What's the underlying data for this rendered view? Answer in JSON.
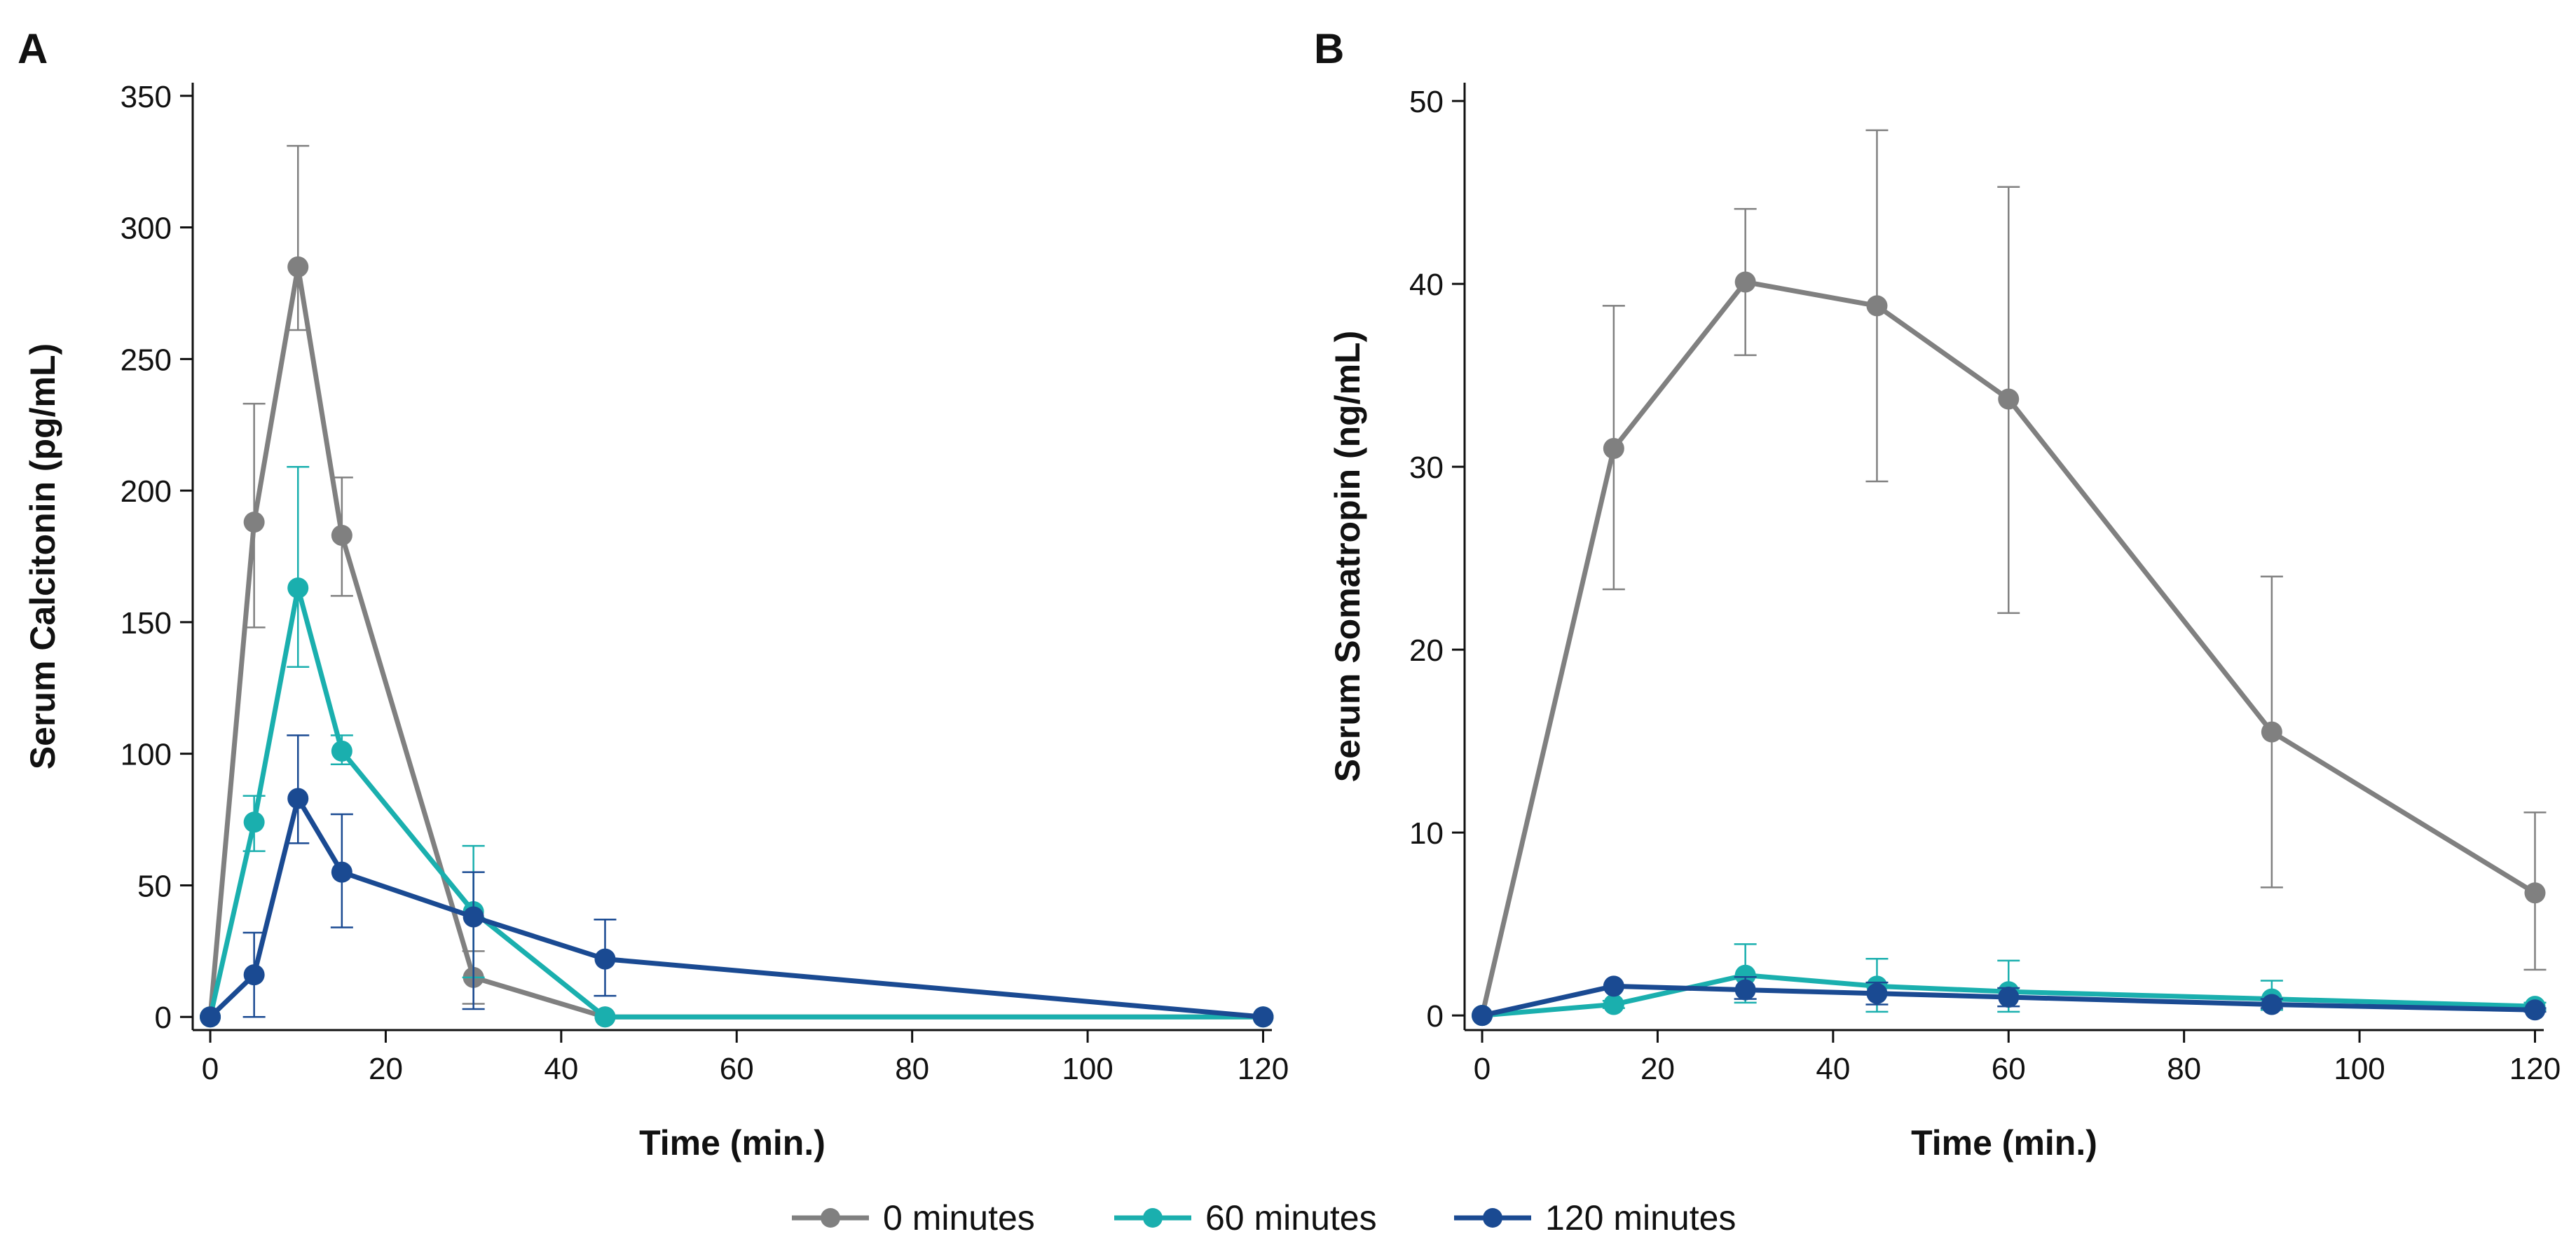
{
  "chart_data": [
    {
      "type": "line",
      "panel_label": "A",
      "xlabel": "Time (min.)",
      "ylabel": "Serum Calcitonin (pg/mL)",
      "xlim": [
        -2,
        121
      ],
      "ylim": [
        -5,
        355
      ],
      "xticks": [
        0,
        20,
        40,
        60,
        80,
        100,
        120
      ],
      "yticks": [
        0,
        50,
        100,
        150,
        200,
        250,
        300,
        350
      ],
      "grid": false,
      "series": [
        {
          "name": "0 minutes",
          "color": "#808080",
          "x": [
            0,
            5,
            10,
            15,
            30,
            45,
            120
          ],
          "y": [
            0,
            188,
            285,
            183,
            15,
            0,
            0
          ],
          "err_low": [
            0,
            148,
            261,
            160,
            5,
            0,
            0
          ],
          "err_high": [
            0,
            233,
            331,
            205,
            25,
            0,
            0
          ]
        },
        {
          "name": "60 minutes",
          "color": "#1AAFAE",
          "x": [
            0,
            5,
            10,
            15,
            30,
            45,
            120
          ],
          "y": [
            0,
            74,
            163,
            101,
            40,
            0,
            0
          ],
          "err_low": [
            0,
            63,
            133,
            96,
            15,
            0,
            0
          ],
          "err_high": [
            0,
            84,
            209,
            107,
            65,
            0,
            0
          ]
        },
        {
          "name": "120 minutes",
          "color": "#1A4A92",
          "x": [
            0,
            5,
            10,
            15,
            30,
            45,
            120
          ],
          "y": [
            0,
            16,
            83,
            55,
            38,
            22,
            0
          ],
          "err_low": [
            0,
            0,
            66,
            34,
            3,
            8,
            0
          ],
          "err_high": [
            0,
            32,
            107,
            77,
            55,
            37,
            0
          ]
        }
      ]
    },
    {
      "type": "line",
      "panel_label": "B",
      "xlabel": "Time (min.)",
      "ylabel": "Serum Somatropin (ng/mL)",
      "xlim": [
        -2,
        121
      ],
      "ylim": [
        -0.8,
        51
      ],
      "xticks": [
        0,
        20,
        40,
        60,
        80,
        100,
        120
      ],
      "yticks": [
        0,
        10,
        20,
        30,
        40,
        50
      ],
      "grid": false,
      "series": [
        {
          "name": "0 minutes",
          "color": "#808080",
          "x": [
            0,
            15,
            30,
            45,
            60,
            90,
            120
          ],
          "y": [
            0,
            31,
            40.1,
            38.8,
            33.7,
            15.5,
            6.7
          ],
          "err_low": [
            0,
            23.3,
            36.1,
            29.2,
            22.0,
            7.0,
            2.5
          ],
          "err_high": [
            0,
            38.8,
            44.1,
            48.4,
            45.3,
            24.0,
            11.1
          ]
        },
        {
          "name": "60 minutes",
          "color": "#1AAFAE",
          "x": [
            0,
            15,
            30,
            45,
            60,
            90,
            120
          ],
          "y": [
            0,
            0.6,
            2.2,
            1.6,
            1.3,
            0.9,
            0.5
          ],
          "err_low": [
            0,
            0.4,
            0.7,
            0.2,
            0.2,
            0.3,
            0.3
          ],
          "err_high": [
            0,
            0.8,
            3.9,
            3.1,
            3.0,
            1.9,
            0.7
          ]
        },
        {
          "name": "120 minutes",
          "color": "#1A4A92",
          "x": [
            0,
            15,
            30,
            45,
            60,
            90,
            120
          ],
          "y": [
            0,
            1.6,
            1.4,
            1.2,
            1.0,
            0.6,
            0.3
          ],
          "err_low": [
            0,
            1.6,
            0.9,
            0.6,
            0.5,
            0.4,
            0.2
          ],
          "err_high": [
            0,
            1.6,
            2.1,
            1.8,
            1.5,
            0.9,
            0.4
          ]
        }
      ]
    }
  ],
  "legend": {
    "position": "bottom-center",
    "items": [
      {
        "label": "0 minutes",
        "color": "#808080"
      },
      {
        "label": "60 minutes",
        "color": "#1AAFAE"
      },
      {
        "label": "120 minutes",
        "color": "#1A4A92"
      }
    ]
  }
}
